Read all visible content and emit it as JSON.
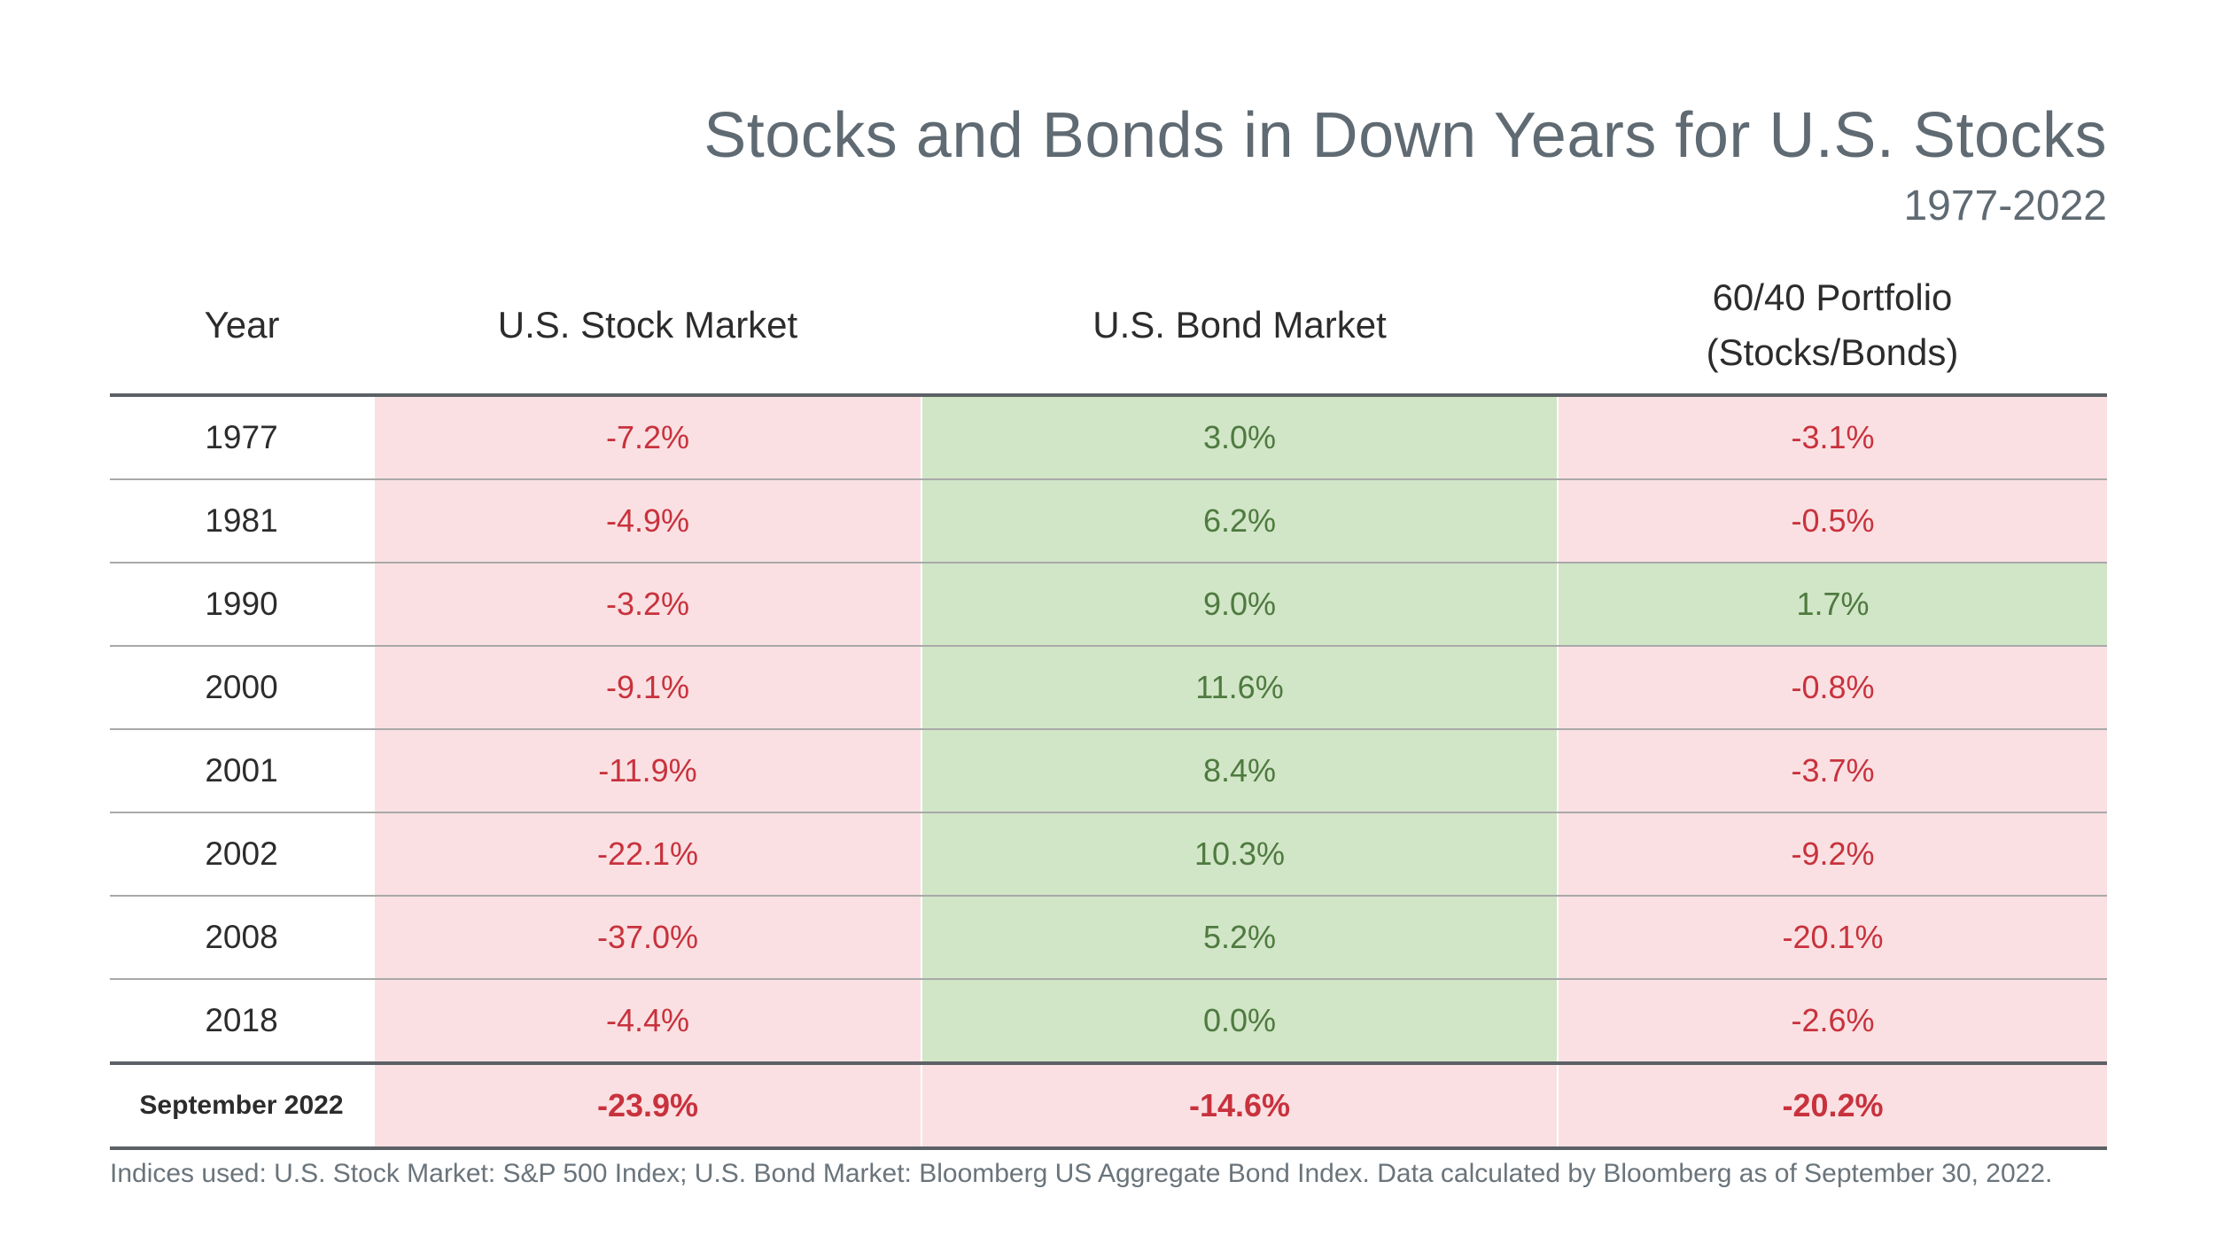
{
  "chart_data": {
    "type": "table",
    "title": "Stocks and Bonds in Down Years for U.S. Stocks",
    "subtitle": "1977-2022",
    "columns": [
      "Year",
      "U.S. Stock Market",
      "U.S. Bond Market",
      "60/40 Portfolio\n(Stocks/Bonds)"
    ],
    "rows": [
      {
        "year": "1977",
        "values": [
          "-7.2%",
          "3.0%",
          "-3.1%"
        ],
        "numeric": [
          -7.2,
          3.0,
          -3.1
        ]
      },
      {
        "year": "1981",
        "values": [
          "-4.9%",
          "6.2%",
          "-0.5%"
        ],
        "numeric": [
          -4.9,
          6.2,
          -0.5
        ]
      },
      {
        "year": "1990",
        "values": [
          "-3.2%",
          "9.0%",
          "1.7%"
        ],
        "numeric": [
          -3.2,
          9.0,
          1.7
        ]
      },
      {
        "year": "2000",
        "values": [
          "-9.1%",
          "11.6%",
          "-0.8%"
        ],
        "numeric": [
          -9.1,
          11.6,
          -0.8
        ]
      },
      {
        "year": "2001",
        "values": [
          "-11.9%",
          "8.4%",
          "-3.7%"
        ],
        "numeric": [
          -11.9,
          8.4,
          -3.7
        ]
      },
      {
        "year": "2002",
        "values": [
          "-22.1%",
          "10.3%",
          "-9.2%"
        ],
        "numeric": [
          -22.1,
          10.3,
          -9.2
        ]
      },
      {
        "year": "2008",
        "values": [
          "-37.0%",
          "5.2%",
          "-20.1%"
        ],
        "numeric": [
          -37.0,
          5.2,
          -20.1
        ]
      },
      {
        "year": "2018",
        "values": [
          "-4.4%",
          "0.0%",
          "-2.6%"
        ],
        "numeric": [
          -4.4,
          0.0,
          -2.6
        ]
      },
      {
        "year": "September 2022",
        "values": [
          "-23.9%",
          "-14.6%",
          "-20.2%"
        ],
        "numeric": [
          -23.9,
          -14.6,
          -20.2
        ]
      }
    ],
    "footnote": "Indices used: U.S. Stock Market: S&P 500 Index; U.S. Bond Market: Bloomberg US Aggregate Bond Index. Data calculated by Bloomberg as of September 30, 2022."
  },
  "colors": {
    "negative_bg": "#fae0e2",
    "negative_text": "#c8323d",
    "positive_bg": "#d1e5c7",
    "positive_text": "#4e7a3f",
    "title": "#5f6a72"
  }
}
